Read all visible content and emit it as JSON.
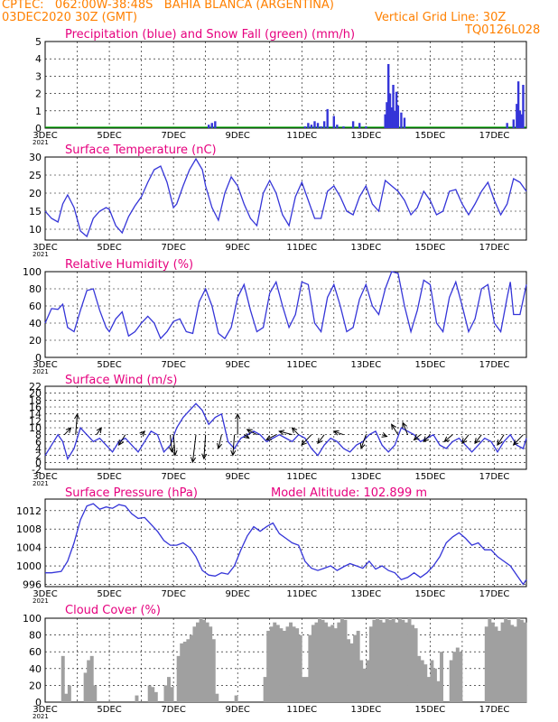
{
  "header": {
    "line1_left": "CPTEC:   062:00W-38:48S   BAHIA BLANCA (ARGENTINA)",
    "line2_left": "03DEC2020 30Z (GMT)",
    "line2_right": "Vertical Grid Line: 30Z",
    "line3_right": "TQ0126L028",
    "color": "#ff8000"
  },
  "colors": {
    "title": "#e6007e",
    "series": "#3535d8",
    "snow": "#00aa00",
    "cloud": "#a0a0a0",
    "wind_arrow": "#000000"
  },
  "x_axis": {
    "labels": [
      "3DEC",
      "5DEC",
      "7DEC",
      "9DEC",
      "11DEC",
      "13DEC",
      "15DEC",
      "17DEC"
    ],
    "start_day": 3,
    "end_day": 18,
    "cut_label": "2021"
  },
  "chart_data": [
    {
      "id": "precip",
      "type": "bar",
      "title": "Precipitation (blue) and Snow Fall (green) (mm/h)",
      "ylim": [
        0,
        5
      ],
      "yticks": [
        0,
        1,
        2,
        3,
        4,
        5
      ],
      "series": [
        {
          "name": "Precipitation",
          "x": [
            8.1,
            8.2,
            8.3,
            11.1,
            11.2,
            11.3,
            11.4,
            11.5,
            11.6,
            11.7,
            11.8,
            12.0,
            12.1,
            12.3,
            12.6,
            12.8,
            13.0,
            13.6,
            13.65,
            13.7,
            13.75,
            13.8,
            13.85,
            13.9,
            13.95,
            14.0,
            14.1,
            14.2,
            17.4,
            17.6,
            17.7,
            17.75,
            17.8,
            17.85,
            17.9
          ],
          "values": [
            0.2,
            0.3,
            0.4,
            0.1,
            0.3,
            0.2,
            0.4,
            0.3,
            0.1,
            0.4,
            1.1,
            0.7,
            0.2,
            0.1,
            0.4,
            0.3,
            0.1,
            0.8,
            1.5,
            3.7,
            2.0,
            1.2,
            2.5,
            1.0,
            2.1,
            1.3,
            0.9,
            0.6,
            0.3,
            0.5,
            1.4,
            2.7,
            1.0,
            0.8,
            2.5
          ]
        },
        {
          "name": "Snow Fall",
          "x": [],
          "values": []
        }
      ]
    },
    {
      "id": "temp",
      "type": "line",
      "title": "Surface Temperature (nC)",
      "ylim": [
        7,
        30
      ],
      "yticks": [
        10,
        15,
        20,
        25,
        30
      ],
      "x": [
        3.0,
        3.2,
        3.4,
        3.55,
        3.7,
        3.9,
        4.1,
        4.3,
        4.5,
        4.7,
        4.9,
        5.0,
        5.2,
        5.4,
        5.6,
        5.8,
        6.0,
        6.2,
        6.4,
        6.6,
        6.8,
        7.0,
        7.1,
        7.3,
        7.5,
        7.7,
        7.9,
        8.0,
        8.2,
        8.4,
        8.6,
        8.8,
        9.0,
        9.2,
        9.4,
        9.6,
        9.8,
        10.0,
        10.2,
        10.4,
        10.6,
        10.8,
        11.0,
        11.2,
        11.4,
        11.6,
        11.8,
        12.0,
        12.2,
        12.4,
        12.6,
        12.8,
        13.0,
        13.2,
        13.4,
        13.6,
        13.8,
        14.0,
        14.2,
        14.4,
        14.6,
        14.8,
        15.0,
        15.2,
        15.4,
        15.6,
        15.8,
        16.0,
        16.2,
        16.4,
        16.6,
        16.8,
        17.0,
        17.2,
        17.4,
        17.6,
        17.8,
        18.0
      ],
      "values": [
        15,
        13,
        12,
        17,
        19.5,
        16,
        9.5,
        8,
        13,
        15,
        16,
        15.5,
        11,
        9,
        13.5,
        16.5,
        19,
        23,
        26.5,
        27.5,
        23,
        16,
        17,
        22,
        26.5,
        29.5,
        26.5,
        22,
        16,
        12.5,
        20,
        24.5,
        22,
        17,
        13,
        11,
        20,
        23.5,
        20,
        14,
        11,
        19,
        23,
        18,
        13,
        13,
        20.5,
        22,
        19,
        15,
        14,
        19,
        22,
        17,
        15,
        23.5,
        22,
        20.5,
        18,
        14,
        16,
        20.5,
        18,
        14,
        15,
        20.5,
        21,
        17,
        14,
        17,
        20.5,
        23,
        18,
        14,
        17,
        24,
        23,
        20.5
      ]
    },
    {
      "id": "rh",
      "type": "line",
      "title": "Relative Humidity (%)",
      "ylim": [
        0,
        100
      ],
      "yticks": [
        0,
        20,
        40,
        60,
        80,
        100
      ],
      "x": [
        3.0,
        3.2,
        3.4,
        3.55,
        3.7,
        3.9,
        4.1,
        4.3,
        4.5,
        4.7,
        4.9,
        5.0,
        5.2,
        5.4,
        5.6,
        5.8,
        6.0,
        6.2,
        6.4,
        6.6,
        6.8,
        7.0,
        7.2,
        7.4,
        7.6,
        7.8,
        8.0,
        8.2,
        8.4,
        8.6,
        8.8,
        9.0,
        9.2,
        9.4,
        9.6,
        9.8,
        10.0,
        10.2,
        10.4,
        10.6,
        10.8,
        11.0,
        11.2,
        11.4,
        11.6,
        11.8,
        12.0,
        12.2,
        12.4,
        12.6,
        12.8,
        13.0,
        13.2,
        13.4,
        13.6,
        13.8,
        14.0,
        14.2,
        14.4,
        14.6,
        14.8,
        15.0,
        15.2,
        15.4,
        15.6,
        15.8,
        16.0,
        16.2,
        16.4,
        16.6,
        16.8,
        17.0,
        17.2,
        17.4,
        17.5,
        17.6,
        17.8,
        18.0
      ],
      "values": [
        40,
        57,
        56,
        62,
        35,
        30,
        55,
        78,
        80,
        55,
        35,
        30,
        45,
        53,
        25,
        30,
        40,
        48,
        40,
        22,
        30,
        42,
        45,
        30,
        28,
        65,
        80,
        60,
        28,
        22,
        35,
        70,
        85,
        55,
        30,
        35,
        75,
        88,
        60,
        35,
        50,
        88,
        85,
        40,
        30,
        70,
        85,
        60,
        30,
        35,
        68,
        85,
        60,
        50,
        80,
        100,
        98,
        60,
        30,
        55,
        90,
        85,
        40,
        30,
        70,
        88,
        60,
        30,
        45,
        80,
        85,
        40,
        30,
        70,
        88,
        50,
        50,
        85
      ]
    },
    {
      "id": "wind",
      "type": "line",
      "title": "Surface Wind (m/s)",
      "ylim": [
        -2,
        22
      ],
      "yticks": [
        -2,
        0,
        2,
        4,
        6,
        8,
        10,
        12,
        14,
        16,
        18,
        20,
        22
      ],
      "x": [
        3.0,
        3.2,
        3.4,
        3.55,
        3.7,
        3.9,
        4.1,
        4.3,
        4.5,
        4.7,
        4.9,
        5.1,
        5.3,
        5.5,
        5.7,
        5.9,
        6.1,
        6.3,
        6.5,
        6.7,
        6.9,
        7.1,
        7.3,
        7.5,
        7.7,
        7.9,
        8.1,
        8.3,
        8.5,
        8.7,
        8.9,
        9.1,
        9.3,
        9.5,
        9.7,
        9.9,
        10.1,
        10.3,
        10.5,
        10.7,
        10.9,
        11.1,
        11.3,
        11.5,
        11.7,
        11.9,
        12.1,
        12.3,
        12.5,
        12.7,
        12.9,
        13.1,
        13.3,
        13.5,
        13.7,
        13.9,
        14.1,
        14.3,
        14.5,
        14.7,
        14.9,
        15.1,
        15.3,
        15.5,
        15.7,
        15.9,
        16.1,
        16.3,
        16.5,
        16.7,
        16.9,
        17.1,
        17.3,
        17.5,
        17.7,
        17.9,
        18.0
      ],
      "values": [
        2,
        5,
        8,
        6,
        1,
        4,
        10,
        8,
        6,
        7,
        5,
        3,
        6,
        7,
        5,
        3,
        6,
        9,
        8,
        3,
        5,
        10,
        13,
        15,
        17,
        15,
        11,
        13,
        14,
        6,
        4,
        7,
        8,
        9,
        8,
        6,
        7,
        8,
        7,
        6,
        8,
        7,
        4,
        2,
        5,
        7,
        6,
        4,
        3,
        5,
        6,
        8,
        9,
        5,
        3,
        5,
        10,
        9,
        8,
        6,
        7,
        8,
        5,
        4,
        6,
        7,
        5,
        3,
        5,
        7,
        6,
        3,
        6,
        8,
        5,
        4,
        7
      ],
      "arrows": [
        {
          "day": 3.6,
          "speed": 7,
          "u": 4,
          "v": 4
        },
        {
          "day": 3.95,
          "speed": 10,
          "u": 1,
          "v": 12
        },
        {
          "day": 4.6,
          "speed": 8,
          "u": 3,
          "v": 4
        },
        {
          "day": 5.5,
          "speed": 6,
          "u": -4,
          "v": -6
        },
        {
          "day": 6.0,
          "speed": 4,
          "u": 2,
          "v": 2
        },
        {
          "day": 6.9,
          "speed": 5,
          "u": 1,
          "v": -10
        },
        {
          "day": 7.0,
          "speed": 6,
          "u": 1,
          "v": -12
        },
        {
          "day": 7.7,
          "speed": 6,
          "u": -2,
          "v": -16
        },
        {
          "day": 8.0,
          "speed": 6,
          "u": -1,
          "v": -14
        },
        {
          "day": 8.5,
          "speed": 12,
          "u": -2,
          "v": -8
        },
        {
          "day": 8.9,
          "speed": 10,
          "u": -1,
          "v": -12
        },
        {
          "day": 9.0,
          "speed": 9,
          "u": 0,
          "v": 12
        },
        {
          "day": 9.2,
          "speed": 10,
          "u": 3,
          "v": -2
        },
        {
          "day": 9.6,
          "speed": 6,
          "u": -6,
          "v": 3
        },
        {
          "day": 10.2,
          "speed": 7,
          "u": -6,
          "v": -3
        },
        {
          "day": 10.7,
          "speed": 6,
          "u": -8,
          "v": 2
        },
        {
          "day": 10.9,
          "speed": 6,
          "u": -4,
          "v": 4
        },
        {
          "day": 11.3,
          "speed": 8,
          "u": -6,
          "v": -6
        },
        {
          "day": 11.7,
          "speed": 6,
          "u": -4,
          "v": -5
        },
        {
          "day": 12.3,
          "speed": 7,
          "u": -6,
          "v": 2
        },
        {
          "day": 13.0,
          "speed": 7,
          "u": -3,
          "v": -8
        },
        {
          "day": 13.5,
          "speed": 8,
          "u": 3,
          "v": -1
        },
        {
          "day": 14.0,
          "speed": 8,
          "u": -4,
          "v": 6
        },
        {
          "day": 14.3,
          "speed": 9,
          "u": -3,
          "v": 7
        },
        {
          "day": 14.7,
          "speed": 8,
          "u": -4,
          "v": -3
        },
        {
          "day": 15.0,
          "speed": 7,
          "u": -4,
          "v": -4
        },
        {
          "day": 15.7,
          "speed": 6,
          "u": -5,
          "v": -4
        },
        {
          "day": 16.2,
          "speed": 5,
          "u": -4,
          "v": -5
        },
        {
          "day": 16.6,
          "speed": 6,
          "u": -4,
          "v": -5
        },
        {
          "day": 17.3,
          "speed": 6,
          "u": -4,
          "v": -6
        },
        {
          "day": 17.9,
          "speed": 7,
          "u": -6,
          "v": -6
        }
      ]
    },
    {
      "id": "pres",
      "type": "line",
      "title": "Surface Pressure (hPa)",
      "subtitle": "Model Altitude: 102.899 m",
      "ylim": [
        995.5,
        1014.5
      ],
      "yticks": [
        996,
        1000,
        1004,
        1008,
        1012
      ],
      "x": [
        3.0,
        3.2,
        3.5,
        3.7,
        3.9,
        4.1,
        4.3,
        4.5,
        4.7,
        4.9,
        5.1,
        5.3,
        5.5,
        5.7,
        5.9,
        6.1,
        6.3,
        6.5,
        6.7,
        6.9,
        7.1,
        7.3,
        7.5,
        7.7,
        7.9,
        8.1,
        8.3,
        8.5,
        8.7,
        8.9,
        9.1,
        9.3,
        9.5,
        9.7,
        9.9,
        10.1,
        10.3,
        10.5,
        10.7,
        10.9,
        11.1,
        11.3,
        11.5,
        11.7,
        11.9,
        12.1,
        12.3,
        12.5,
        12.7,
        12.9,
        13.1,
        13.3,
        13.5,
        13.7,
        13.9,
        14.1,
        14.3,
        14.5,
        14.7,
        14.9,
        15.1,
        15.3,
        15.5,
        15.7,
        15.9,
        16.1,
        16.3,
        16.5,
        16.7,
        16.9,
        17.1,
        17.3,
        17.5,
        17.7,
        17.9,
        18.0
      ],
      "values": [
        998.5,
        998.5,
        998.8,
        1001,
        1005,
        1010,
        1013,
        1013.5,
        1012.3,
        1012.8,
        1012.5,
        1013.3,
        1013,
        1011.3,
        1010.3,
        1010.5,
        1009,
        1007.5,
        1005.5,
        1004.5,
        1004.5,
        1005,
        1004,
        1002,
        999,
        998,
        997.8,
        998.5,
        998.2,
        1000,
        1003.5,
        1006.5,
        1008.5,
        1007.5,
        1008.5,
        1009.3,
        1007,
        1006,
        1005,
        1004.5,
        1001,
        999.5,
        999,
        999.5,
        1000,
        999,
        999.8,
        1000.5,
        1000,
        999.5,
        1001,
        999.3,
        1000,
        999,
        998.5,
        997,
        997.5,
        998.5,
        997.5,
        998.5,
        1000,
        1002,
        1005,
        1006.3,
        1007.2,
        1006,
        1004.5,
        1005,
        1003.5,
        1003.5,
        1002,
        1001,
        1000,
        998,
        996,
        997
      ]
    },
    {
      "id": "cloud",
      "type": "bar",
      "title": "Cloud Cover (%)",
      "ylim": [
        0,
        100
      ],
      "yticks": [
        0,
        20,
        40,
        60,
        80,
        100
      ],
      "x": [
        3.0,
        3.1,
        3.2,
        3.3,
        3.4,
        3.5,
        3.6,
        3.7,
        3.8,
        3.9,
        4.0,
        4.1,
        4.2,
        4.3,
        4.4,
        4.5,
        4.6,
        4.7,
        4.8,
        4.9,
        5.0,
        5.1,
        5.2,
        5.3,
        5.4,
        5.5,
        5.6,
        5.7,
        5.8,
        5.9,
        6.0,
        6.1,
        6.2,
        6.3,
        6.4,
        6.5,
        6.6,
        6.7,
        6.8,
        6.9,
        7.0,
        7.1,
        7.2,
        7.3,
        7.4,
        7.5,
        7.6,
        7.7,
        7.8,
        7.9,
        8.0,
        8.1,
        8.2,
        8.3,
        8.4,
        8.5,
        8.6,
        8.7,
        8.8,
        8.9,
        9.0,
        9.1,
        9.2,
        9.3,
        9.4,
        9.5,
        9.6,
        9.7,
        9.8,
        9.9,
        10.0,
        10.1,
        10.2,
        10.3,
        10.4,
        10.5,
        10.6,
        10.7,
        10.8,
        10.9,
        11.0,
        11.1,
        11.2,
        11.3,
        11.4,
        11.5,
        11.6,
        11.7,
        11.8,
        11.9,
        12.0,
        12.1,
        12.2,
        12.3,
        12.4,
        12.5,
        12.6,
        12.7,
        12.8,
        12.9,
        13.0,
        13.1,
        13.2,
        13.3,
        13.4,
        13.5,
        13.6,
        13.7,
        13.8,
        13.9,
        14.0,
        14.1,
        14.2,
        14.3,
        14.4,
        14.5,
        14.6,
        14.7,
        14.8,
        14.9,
        15.0,
        15.1,
        15.2,
        15.3,
        15.4,
        15.5,
        15.6,
        15.7,
        15.8,
        15.9,
        16.0,
        16.1,
        16.2,
        16.3,
        16.4,
        16.5,
        16.6,
        16.7,
        16.8,
        16.9,
        17.0,
        17.1,
        17.2,
        17.3,
        17.4,
        17.5,
        17.6,
        17.7,
        17.8,
        17.9
      ],
      "values": [
        0,
        0,
        0,
        0,
        0,
        55,
        10,
        20,
        0,
        0,
        0,
        0,
        35,
        50,
        55,
        20,
        0,
        0,
        0,
        0,
        0,
        0,
        0,
        0,
        0,
        0,
        0,
        0,
        8,
        0,
        0,
        0,
        20,
        18,
        12,
        0,
        0,
        20,
        30,
        18,
        0,
        55,
        70,
        72,
        75,
        80,
        90,
        95,
        100,
        98,
        95,
        90,
        75,
        10,
        0,
        0,
        0,
        0,
        0,
        8,
        0,
        0,
        0,
        0,
        0,
        0,
        0,
        0,
        30,
        85,
        90,
        95,
        92,
        88,
        85,
        90,
        95,
        90,
        88,
        80,
        30,
        30,
        80,
        92,
        95,
        100,
        98,
        95,
        90,
        92,
        88,
        95,
        100,
        98,
        75,
        70,
        80,
        85,
        50,
        40,
        50,
        90,
        98,
        100,
        98,
        95,
        100,
        98,
        100,
        95,
        100,
        98,
        95,
        100,
        92,
        88,
        55,
        50,
        45,
        30,
        50,
        40,
        25,
        60,
        0,
        0,
        50,
        60,
        65,
        60,
        0,
        0,
        0,
        0,
        0,
        0,
        0,
        90,
        100,
        95,
        90,
        85,
        95,
        100,
        98,
        92,
        90,
        100,
        98,
        95
      ]
    }
  ]
}
